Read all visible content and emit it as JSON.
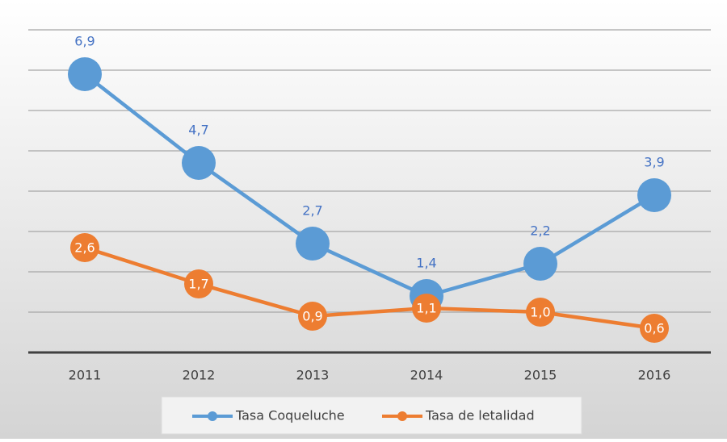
{
  "chart_data": {
    "type": "line",
    "categories": [
      "2011",
      "2012",
      "2013",
      "2014",
      "2015",
      "2016"
    ],
    "series": [
      {
        "name": "Tasa Coqueluche",
        "color": "#5b9bd5",
        "values": [
          6.9,
          4.7,
          2.7,
          1.4,
          2.2,
          3.9
        ],
        "value_labels": [
          "6,9",
          "4,7",
          "2,7",
          "1,4",
          "2,2",
          "3,9"
        ]
      },
      {
        "name": "Tasa de letalidad",
        "color": "#ed7d31",
        "values": [
          2.6,
          1.7,
          0.9,
          1.1,
          1.0,
          0.6
        ],
        "value_labels": [
          "2,6",
          "1,7",
          "0,9",
          "1,1",
          "1,0",
          "0,6"
        ]
      }
    ],
    "ylim": [
      0,
      8
    ],
    "yticks": [
      0,
      1,
      2,
      3,
      4,
      5,
      6,
      7,
      8
    ],
    "grid": true,
    "legend": "bottom"
  }
}
